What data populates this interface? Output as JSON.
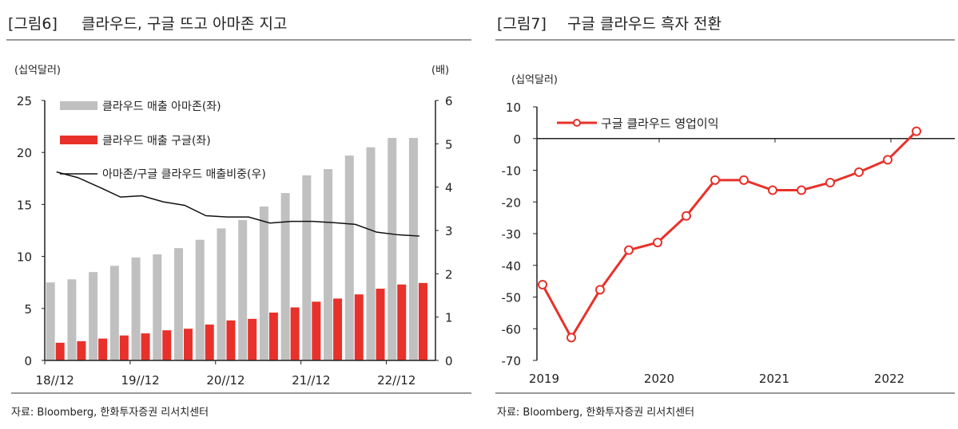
{
  "chart_data": [
    {
      "type": "bar",
      "figure_label": "[그림6]",
      "title": "클라우드, 구글 뜨고 아마존 지고",
      "left_unit": "(십억달러)",
      "right_unit": "(배)",
      "x_tick_labels": [
        "18//12",
        "19//12",
        "20//12",
        "21//12",
        "22//12"
      ],
      "ylim": [
        0,
        25
      ],
      "y_ticks": [
        0,
        5,
        10,
        15,
        20,
        25
      ],
      "y2lim": [
        0,
        6
      ],
      "y2_ticks": [
        0,
        1,
        2,
        3,
        4,
        5,
        6
      ],
      "series": [
        {
          "name": "클라우드  매출 아마존(좌)",
          "kind": "bar",
          "axis": "left",
          "color": "#c0c0c0",
          "values": [
            7.5,
            7.8,
            8.5,
            9.1,
            9.9,
            10.2,
            10.8,
            11.6,
            12.7,
            13.5,
            14.8,
            16.1,
            17.8,
            18.4,
            19.7,
            20.5,
            21.4,
            21.4
          ]
        },
        {
          "name": "클라우드  매출 구글(좌)",
          "kind": "bar",
          "axis": "left",
          "color": "#e8312a",
          "values": [
            1.7,
            1.85,
            2.1,
            2.4,
            2.6,
            2.9,
            3.05,
            3.45,
            3.85,
            4.0,
            4.6,
            5.1,
            5.65,
            5.95,
            6.35,
            6.9,
            7.3,
            7.45
          ]
        },
        {
          "name": "아마존/구글  클라우드  매출비중(우)",
          "kind": "line",
          "axis": "right",
          "color": "#111111",
          "values": [
            4.35,
            4.22,
            4.0,
            3.77,
            3.8,
            3.66,
            3.58,
            3.34,
            3.31,
            3.31,
            3.17,
            3.21,
            3.21,
            3.18,
            3.14,
            2.96,
            2.9,
            2.87
          ]
        }
      ],
      "source": "자료: Bloomberg, 한화투자증권 리서치센터"
    },
    {
      "type": "line",
      "figure_label": "[그림7]",
      "title": "구글 클라우드 흑자 전환",
      "unit": "(십억달러)",
      "x_tick_labels": [
        "2019",
        "2020",
        "2021",
        "2022"
      ],
      "ylim": [
        -70,
        10
      ],
      "y_ticks": [
        -70,
        -60,
        -50,
        -40,
        -30,
        -20,
        -10,
        0,
        10
      ],
      "series": [
        {
          "name": "구글 클라우드  영업이익",
          "color": "#e8312a",
          "values": [
            -46.1,
            -62.8,
            -47.7,
            -35.2,
            -32.8,
            -24.4,
            -13.1,
            -13.1,
            -16.3,
            -16.3,
            -13.9,
            -10.6,
            -6.7,
            2.3
          ]
        }
      ],
      "source": "자료: Bloomberg, 한화투자증권 리서치센터"
    }
  ]
}
